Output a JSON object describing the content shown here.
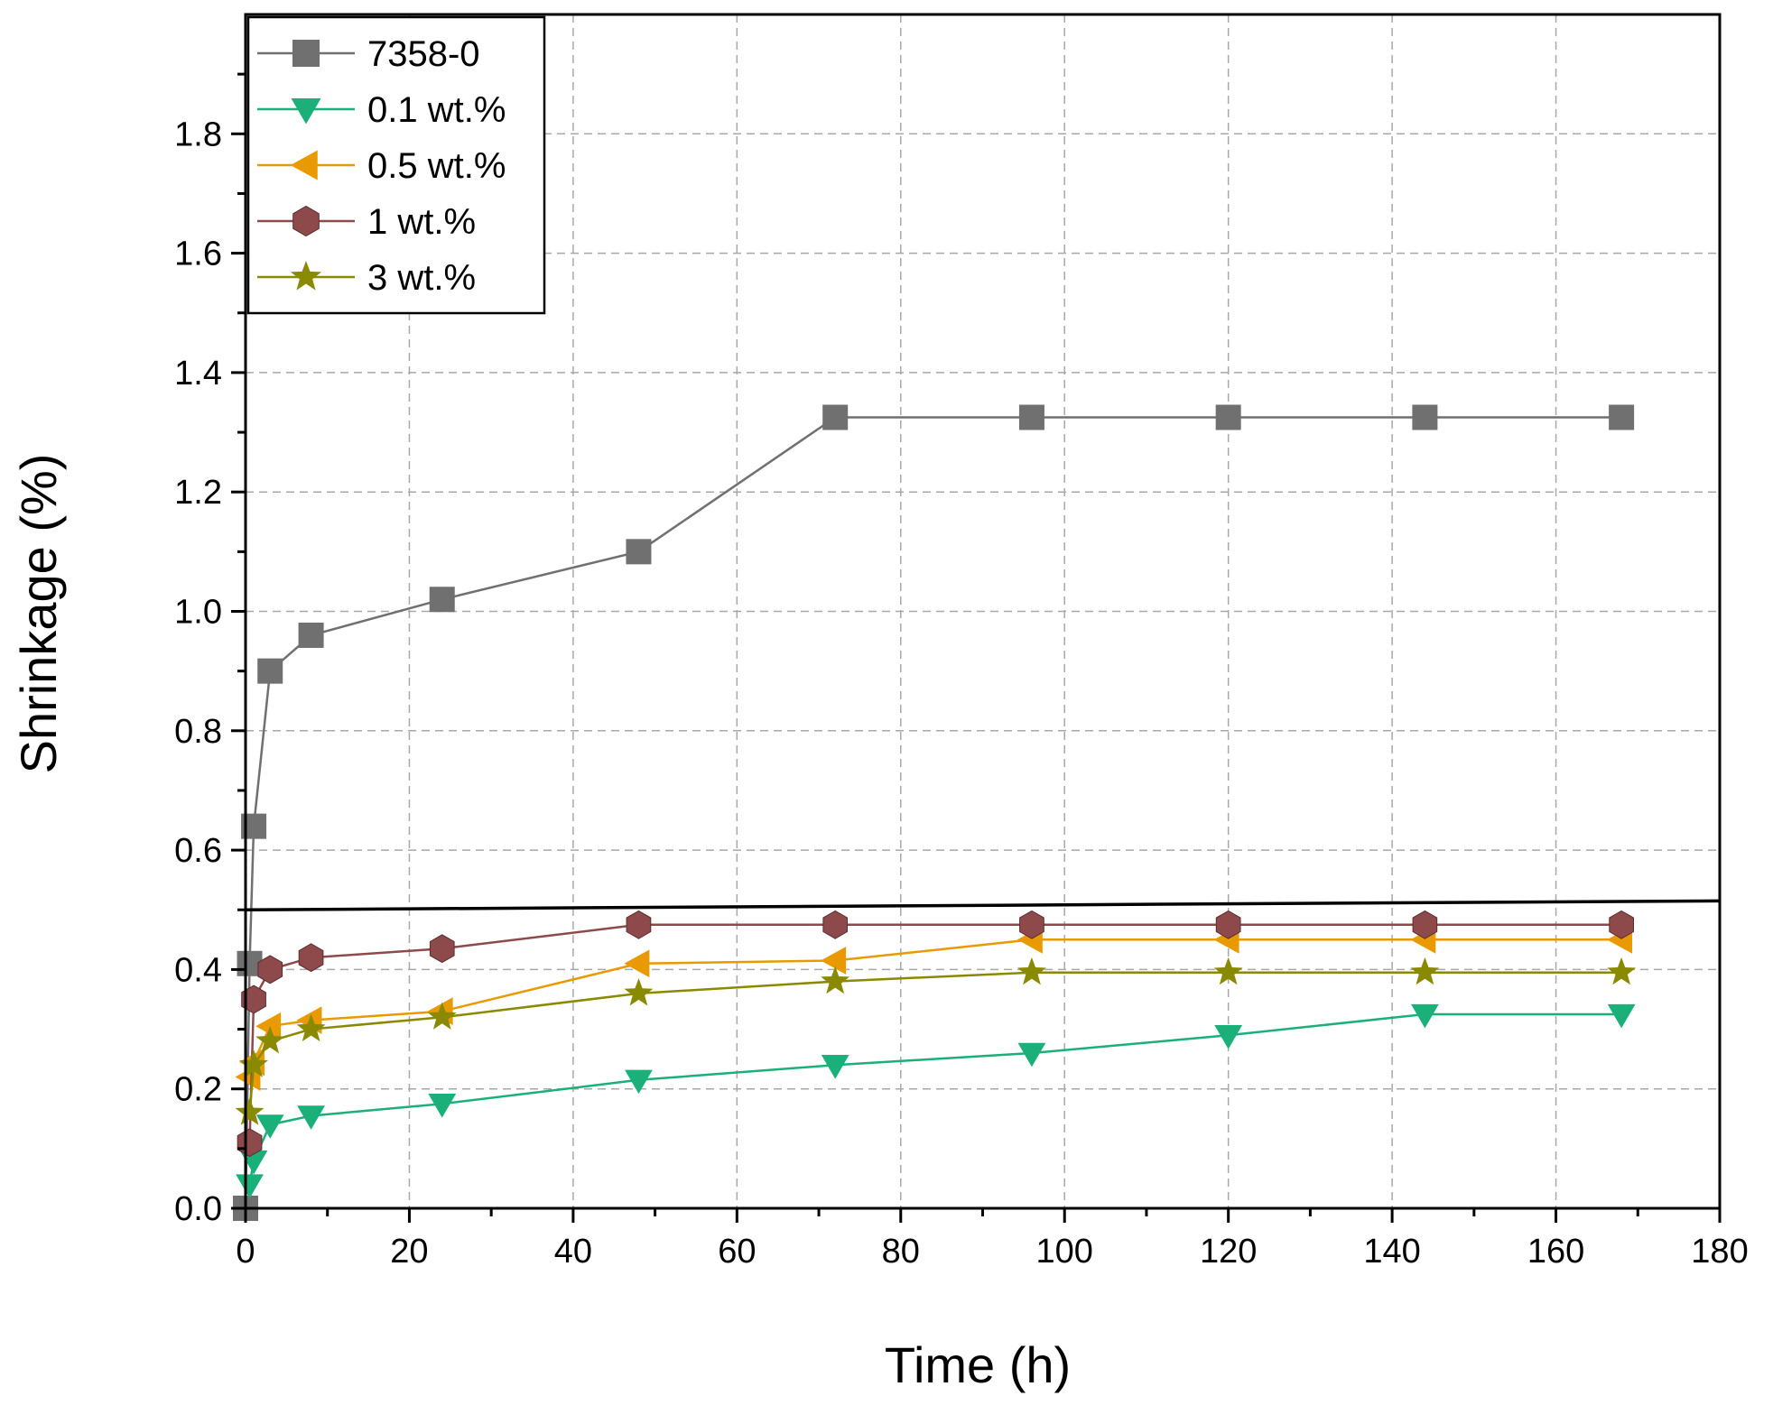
{
  "chart_data": {
    "type": "line",
    "title": "",
    "xlabel": "Time (h)",
    "ylabel": "Shrinkage (%)",
    "xlim": [
      0,
      180
    ],
    "ylim": [
      0,
      2.0
    ],
    "xticks": [
      0,
      20,
      40,
      60,
      80,
      100,
      120,
      140,
      160,
      180
    ],
    "xtick_labels": [
      "0",
      "20",
      "40",
      "60",
      "80",
      "100",
      "120",
      "140",
      "160",
      "180"
    ],
    "yticks": [
      0.0,
      0.2,
      0.4,
      0.6,
      0.8,
      1.0,
      1.2,
      1.4,
      1.6,
      1.8
    ],
    "ytick_labels": [
      "0.0",
      "0.2",
      "0.4",
      "0.6",
      "0.8",
      "1.0",
      "1.2",
      "1.4",
      "1.6",
      "1.8"
    ],
    "grid": true,
    "legend_position": "top-left",
    "annotation_line_y": [
      0.5,
      0.515
    ],
    "series": [
      {
        "name": "7358-0",
        "marker": "square",
        "color": "#707070",
        "x": [
          0,
          0.5,
          1,
          3,
          8,
          24,
          48,
          72,
          96,
          120,
          144,
          168
        ],
        "y": [
          0.0,
          0.41,
          0.64,
          0.9,
          0.96,
          1.02,
          1.1,
          1.325,
          1.325,
          1.325,
          1.325,
          1.325
        ]
      },
      {
        "name": "0.1 wt.%",
        "marker": "triangle-down",
        "color": "#1bb07a",
        "x": [
          0.5,
          1,
          3,
          8,
          24,
          48,
          72,
          96,
          120,
          144,
          168
        ],
        "y": [
          0.04,
          0.08,
          0.14,
          0.155,
          0.175,
          0.215,
          0.24,
          0.26,
          0.29,
          0.325,
          0.325
        ]
      },
      {
        "name": "0.5 wt.%",
        "marker": "triangle-left",
        "color": "#e89a00",
        "x": [
          0.5,
          1,
          3,
          8,
          24,
          48,
          72,
          96,
          120,
          144,
          168
        ],
        "y": [
          0.22,
          0.245,
          0.305,
          0.315,
          0.33,
          0.41,
          0.415,
          0.45,
          0.45,
          0.45,
          0.45
        ]
      },
      {
        "name": "1 wt.%",
        "marker": "hexagon",
        "color": "#8e4a4a",
        "x": [
          0.5,
          1,
          3,
          8,
          24,
          48,
          72,
          96,
          120,
          144,
          168
        ],
        "y": [
          0.11,
          0.35,
          0.4,
          0.42,
          0.435,
          0.475,
          0.475,
          0.475,
          0.475,
          0.475,
          0.475
        ]
      },
      {
        "name": "3 wt.%",
        "marker": "star",
        "color": "#8a8a00",
        "x": [
          0.5,
          1,
          3,
          8,
          24,
          48,
          72,
          96,
          120,
          144,
          168
        ],
        "y": [
          0.16,
          0.24,
          0.28,
          0.3,
          0.32,
          0.36,
          0.38,
          0.395,
          0.395,
          0.395,
          0.395
        ]
      }
    ]
  }
}
